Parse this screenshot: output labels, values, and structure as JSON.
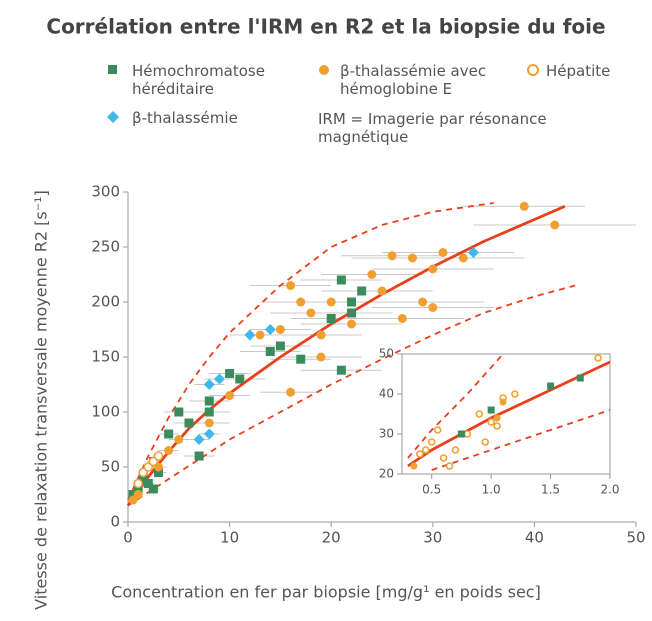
{
  "chart_data": [
    {
      "type": "scatter",
      "title": "Corrélation entre l'IRM en R2 et la biopsie du foie",
      "x_label": "Concentration en fer par biopsie [mg/g¹ en poids sec]",
      "y_label": "Vitesse de relaxation transversale moyenne R2 [s⁻¹]",
      "note": "IRM = Imagerie par résonance magnétique",
      "xlim": [
        0,
        50
      ],
      "xticks": [
        0,
        10,
        20,
        30,
        40,
        50
      ],
      "ylim": [
        0,
        300
      ],
      "yticks": [
        0,
        50,
        100,
        150,
        200,
        250,
        300
      ],
      "series": [
        {
          "name": "Hémochromatose héréditaire",
          "color": "#3a8c5c",
          "marker": "square",
          "x": [
            0.5,
            1,
            1.5,
            2,
            2.5,
            2.5,
            3,
            4,
            5,
            6,
            7,
            8,
            8,
            10,
            11,
            14,
            15,
            17,
            20,
            21,
            21,
            22,
            22,
            23
          ],
          "values": [
            25,
            30,
            40,
            35,
            30,
            55,
            45,
            80,
            100,
            90,
            60,
            100,
            110,
            135,
            130,
            155,
            160,
            148,
            185,
            138,
            220,
            200,
            190,
            210
          ],
          "x_err": [
            0.3,
            0.5,
            0.5,
            0.6,
            0.6,
            0.6,
            0.8,
            1,
            1.5,
            1.5,
            1.5,
            2,
            2,
            2,
            2.5,
            3,
            3,
            3,
            4,
            4,
            4,
            4,
            4,
            4
          ]
        },
        {
          "name": "β-thalassémie avec hémoglobine E",
          "color": "#f0a030",
          "marker": "circle",
          "x": [
            0.5,
            1,
            3,
            4,
            5,
            8,
            10,
            13,
            15,
            16,
            16,
            17,
            18,
            19,
            19,
            20,
            22,
            24,
            25,
            26,
            27,
            28,
            29,
            30,
            30,
            31,
            33,
            39,
            42
          ],
          "values": [
            20,
            25,
            50,
            65,
            75,
            90,
            115,
            170,
            175,
            118,
            215,
            200,
            190,
            170,
            150,
            200,
            180,
            225,
            210,
            242,
            185,
            240,
            200,
            195,
            230,
            245,
            240,
            287,
            270
          ],
          "x_err": [
            0.3,
            0.5,
            0.8,
            1,
            1,
            2,
            2,
            3,
            3,
            3,
            4,
            4,
            4,
            4,
            4,
            4,
            5,
            5,
            5,
            5,
            6,
            6,
            6,
            6,
            6,
            6,
            6,
            6,
            8
          ]
        },
        {
          "name": "Hépatite",
          "color": "#f0a030",
          "marker": "open",
          "x": [
            1,
            1.5,
            2,
            2.5,
            3
          ],
          "values": [
            35,
            45,
            50,
            55,
            60
          ],
          "x_err": [
            0.3,
            0.4,
            0.5,
            0.5,
            0.6
          ]
        },
        {
          "name": "β-thalassémie",
          "color": "#40b8e8",
          "marker": "diamond",
          "x": [
            7,
            8,
            8,
            9,
            12,
            14,
            34
          ],
          "values": [
            75,
            80,
            125,
            130,
            170,
            175,
            245
          ],
          "x_err": [
            1,
            1,
            1.5,
            1.5,
            2,
            2,
            4
          ]
        }
      ],
      "curves": [
        {
          "color": "#e8401c",
          "dashed": false,
          "x": [
            0,
            1,
            2,
            4,
            6,
            8,
            10,
            15,
            20,
            25,
            30,
            35,
            40,
            43
          ],
          "values": [
            15,
            28,
            41,
            64,
            85,
            102,
            117,
            150,
            180,
            207,
            232,
            255,
            275,
            287
          ]
        },
        {
          "color": "#e8401c",
          "dashed": true,
          "x": [
            0,
            2,
            4,
            6,
            8,
            10,
            15,
            20,
            25,
            30,
            36
          ],
          "values": [
            20,
            60,
            95,
            125,
            150,
            172,
            215,
            250,
            270,
            282,
            290
          ]
        },
        {
          "color": "#e8401c",
          "dashed": true,
          "x": [
            0,
            5,
            10,
            15,
            20,
            25,
            30,
            35,
            40,
            44
          ],
          "values": [
            15,
            45,
            75,
            100,
            125,
            148,
            170,
            190,
            205,
            215
          ]
        }
      ]
    },
    {
      "type": "scatter",
      "xlim": [
        0.25,
        2.0
      ],
      "xticks": [
        0.5,
        {
          "value": 1,
          "label": "1.0"
        },
        1.5,
        {
          "value": 2,
          "label": "2.0"
        }
      ],
      "ylim": [
        20,
        50
      ],
      "yticks": [
        20,
        30,
        40,
        50
      ],
      "series": [
        {
          "color": "#f0a030",
          "marker": "open",
          "x": [
            0.4,
            0.45,
            0.5,
            0.55,
            0.6,
            0.65,
            0.7,
            0.8,
            0.9,
            0.95,
            1.0,
            1.05,
            1.1,
            1.2,
            1.9
          ],
          "values": [
            25,
            26,
            28,
            31,
            24,
            22,
            26,
            30,
            35,
            28,
            33,
            32,
            39,
            40,
            49
          ]
        },
        {
          "color": "#3a8c5c",
          "marker": "square",
          "x": [
            0.75,
            1.0,
            1.5,
            1.75
          ],
          "values": [
            30,
            36,
            42,
            44
          ]
        },
        {
          "color": "#f0a030",
          "marker": "circle",
          "x": [
            0.35,
            1.05,
            1.1
          ],
          "values": [
            22,
            34,
            38
          ]
        }
      ],
      "curves": [
        {
          "color": "#e8401c",
          "dashed": false,
          "x": [
            0.3,
            0.5,
            1.0,
            1.5,
            2.0
          ],
          "values": [
            22,
            26,
            34,
            41,
            48
          ]
        },
        {
          "color": "#e8401c",
          "dashed": true,
          "x": [
            0.3,
            0.5,
            0.8,
            1.1
          ],
          "values": [
            24,
            31,
            40,
            50
          ]
        },
        {
          "color": "#e8401c",
          "dashed": true,
          "x": [
            0.5,
            1.0,
            1.5,
            2.0
          ],
          "values": [
            21,
            26,
            31,
            36
          ]
        }
      ]
    }
  ]
}
